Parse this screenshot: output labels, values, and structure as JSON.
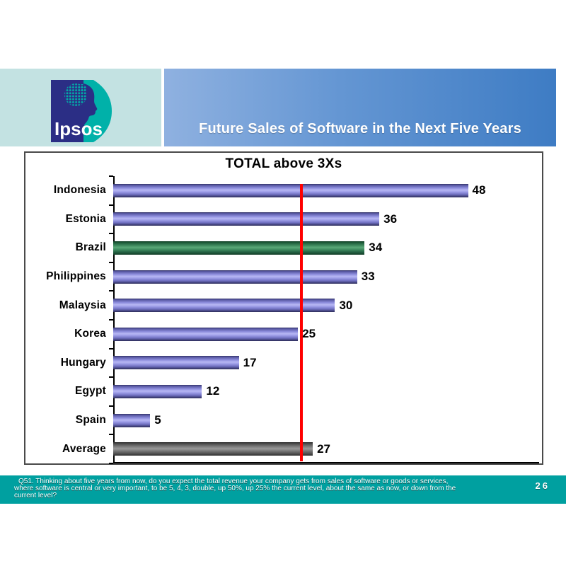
{
  "header": {
    "logo_text": "Ipsos",
    "title": "Future Sales of Software in the Next Five Years"
  },
  "chart_data": {
    "type": "bar",
    "orientation": "horizontal",
    "title": "TOTAL above 3Xs",
    "categories": [
      "Indonesia",
      "Estonia",
      "Brazil",
      "Philippines",
      "Malaysia",
      "Korea",
      "Hungary",
      "Egypt",
      "Spain",
      "Average"
    ],
    "values": [
      48,
      36,
      34,
      33,
      30,
      25,
      17,
      12,
      5,
      27
    ],
    "bar_styles": [
      "default",
      "default",
      "green",
      "default",
      "default",
      "default",
      "default",
      "default",
      "default",
      "gray"
    ],
    "xlim": [
      0,
      58
    ],
    "grid": false,
    "value_labels_shown": true,
    "reference_line": {
      "value": 25.5,
      "color": "#FF0000"
    }
  },
  "colors": {
    "bar_default_mid": "#9F9FE9",
    "bar_green_mid": "#4E9E70",
    "bar_gray_mid": "#8C8C8C",
    "reference_line": "#FF0000",
    "banner_left": "#8FB1E0",
    "banner_right": "#3E7CC4",
    "header_band_bg": "#C3E2E2",
    "logo_navy": "#2B2E85",
    "logo_teal": "#00B1A9",
    "footer_bg": "#00A0A0"
  },
  "footer": {
    "lines": [
      "Q51. Thinking about five years from now, do you expect the total revenue your company gets from sales of software or goods or services,",
      "where software is central or very important, to be 5, 4, 3, double, up 50%, up 25% the current level, about the same as now, or down from the",
      "current level?"
    ],
    "page_number": "26"
  }
}
